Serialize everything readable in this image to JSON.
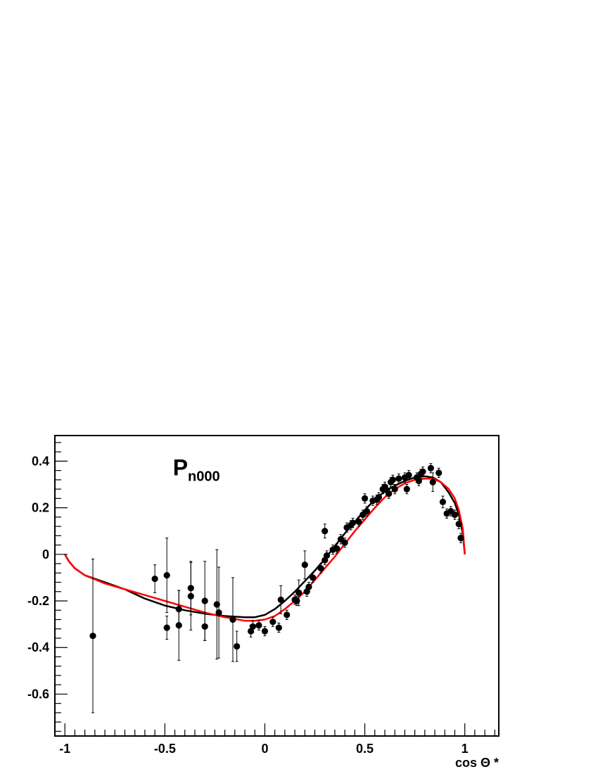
{
  "chart_data": {
    "type": "scatter",
    "title": "",
    "panel_label": {
      "main": "P",
      "subscript": "n000"
    },
    "xlabel": "cos Θ *",
    "ylabel": "",
    "xlim": [
      -1.05,
      1.17
    ],
    "ylim": [
      -0.78,
      0.51
    ],
    "x_ticks": [
      {
        "value": -1,
        "label": "-1"
      },
      {
        "value": -0.5,
        "label": "-0.5"
      },
      {
        "value": 0,
        "label": "0"
      },
      {
        "value": 0.5,
        "label": "0.5"
      },
      {
        "value": 1,
        "label": "1"
      }
    ],
    "y_ticks": [
      {
        "value": 0.4,
        "label": "0.4"
      },
      {
        "value": 0.2,
        "label": "0.2"
      },
      {
        "value": 0,
        "label": "0"
      },
      {
        "value": -0.2,
        "label": "-0.2"
      },
      {
        "value": -0.4,
        "label": "-0.4"
      },
      {
        "value": -0.6,
        "label": "-0.6"
      }
    ],
    "grid": false,
    "series": [
      {
        "kind": "points",
        "color": "#000000",
        "points": [
          {
            "x": -0.86,
            "y": -0.35,
            "err": 0.33
          },
          {
            "x": -0.55,
            "y": -0.105,
            "err": 0.06
          },
          {
            "x": -0.49,
            "y": -0.09,
            "err": 0.16
          },
          {
            "x": -0.49,
            "y": -0.315,
            "err": 0.05
          },
          {
            "x": -0.43,
            "y": -0.305,
            "err": 0.15
          },
          {
            "x": -0.43,
            "y": -0.235,
            "err": 0.08
          },
          {
            "x": -0.37,
            "y": -0.145,
            "err": 0.115
          },
          {
            "x": -0.37,
            "y": -0.18,
            "err": 0.145
          },
          {
            "x": -0.3,
            "y": -0.2,
            "err": 0.17
          },
          {
            "x": -0.3,
            "y": -0.31,
            "err": 0.06
          },
          {
            "x": -0.24,
            "y": -0.215,
            "err": 0.235
          },
          {
            "x": -0.23,
            "y": -0.25,
            "err": 0.195
          },
          {
            "x": -0.16,
            "y": -0.28,
            "err": 0.18
          },
          {
            "x": -0.14,
            "y": -0.395,
            "err": 0.065
          },
          {
            "x": -0.07,
            "y": -0.33,
            "err": 0.025
          },
          {
            "x": -0.06,
            "y": -0.31,
            "err": 0.025
          },
          {
            "x": -0.03,
            "y": -0.305,
            "err": 0.02
          },
          {
            "x": 0.0,
            "y": -0.33,
            "err": 0.02
          },
          {
            "x": 0.04,
            "y": -0.29,
            "err": 0.02
          },
          {
            "x": 0.07,
            "y": -0.315,
            "err": 0.02
          },
          {
            "x": 0.08,
            "y": -0.195,
            "err": 0.06
          },
          {
            "x": 0.11,
            "y": -0.26,
            "err": 0.02
          },
          {
            "x": 0.15,
            "y": -0.195,
            "err": 0.02
          },
          {
            "x": 0.16,
            "y": -0.2,
            "err": 0.02
          },
          {
            "x": 0.17,
            "y": -0.165,
            "err": 0.055
          },
          {
            "x": 0.2,
            "y": -0.045,
            "err": 0.06
          },
          {
            "x": 0.21,
            "y": -0.16,
            "err": 0.02
          },
          {
            "x": 0.22,
            "y": -0.14,
            "err": 0.02
          },
          {
            "x": 0.24,
            "y": -0.1,
            "err": 0.02
          },
          {
            "x": 0.28,
            "y": -0.06,
            "err": 0.02
          },
          {
            "x": 0.3,
            "y": 0.1,
            "err": 0.03
          },
          {
            "x": 0.3,
            "y": -0.025,
            "err": 0.02
          },
          {
            "x": 0.31,
            "y": -0.005,
            "err": 0.02
          },
          {
            "x": 0.34,
            "y": 0.02,
            "err": 0.02
          },
          {
            "x": 0.36,
            "y": 0.025,
            "err": 0.02
          },
          {
            "x": 0.38,
            "y": 0.065,
            "err": 0.02
          },
          {
            "x": 0.4,
            "y": 0.05,
            "err": 0.02
          },
          {
            "x": 0.41,
            "y": 0.115,
            "err": 0.02
          },
          {
            "x": 0.43,
            "y": 0.125,
            "err": 0.02
          },
          {
            "x": 0.44,
            "y": 0.135,
            "err": 0.02
          },
          {
            "x": 0.47,
            "y": 0.14,
            "err": 0.02
          },
          {
            "x": 0.49,
            "y": 0.17,
            "err": 0.02
          },
          {
            "x": 0.5,
            "y": 0.24,
            "err": 0.02
          },
          {
            "x": 0.51,
            "y": 0.185,
            "err": 0.02
          },
          {
            "x": 0.54,
            "y": 0.23,
            "err": 0.02
          },
          {
            "x": 0.56,
            "y": 0.235,
            "err": 0.02
          },
          {
            "x": 0.57,
            "y": 0.245,
            "err": 0.02
          },
          {
            "x": 0.59,
            "y": 0.28,
            "err": 0.02
          },
          {
            "x": 0.6,
            "y": 0.29,
            "err": 0.02
          },
          {
            "x": 0.61,
            "y": 0.275,
            "err": 0.02
          },
          {
            "x": 0.62,
            "y": 0.26,
            "err": 0.02
          },
          {
            "x": 0.63,
            "y": 0.31,
            "err": 0.02
          },
          {
            "x": 0.64,
            "y": 0.32,
            "err": 0.02
          },
          {
            "x": 0.65,
            "y": 0.28,
            "err": 0.02
          },
          {
            "x": 0.67,
            "y": 0.325,
            "err": 0.02
          },
          {
            "x": 0.7,
            "y": 0.33,
            "err": 0.02
          },
          {
            "x": 0.71,
            "y": 0.28,
            "err": 0.02
          },
          {
            "x": 0.72,
            "y": 0.34,
            "err": 0.02
          },
          {
            "x": 0.76,
            "y": 0.33,
            "err": 0.02
          },
          {
            "x": 0.77,
            "y": 0.315,
            "err": 0.02
          },
          {
            "x": 0.78,
            "y": 0.345,
            "err": 0.02
          },
          {
            "x": 0.79,
            "y": 0.355,
            "err": 0.02
          },
          {
            "x": 0.83,
            "y": 0.37,
            "err": 0.02
          },
          {
            "x": 0.84,
            "y": 0.31,
            "err": 0.04
          },
          {
            "x": 0.87,
            "y": 0.35,
            "err": 0.02
          },
          {
            "x": 0.89,
            "y": 0.225,
            "err": 0.025
          },
          {
            "x": 0.91,
            "y": 0.175,
            "err": 0.02
          },
          {
            "x": 0.93,
            "y": 0.185,
            "err": 0.02
          },
          {
            "x": 0.95,
            "y": 0.17,
            "err": 0.02
          },
          {
            "x": 0.97,
            "y": 0.13,
            "err": 0.02
          },
          {
            "x": 0.98,
            "y": 0.07,
            "err": 0.02
          }
        ]
      },
      {
        "kind": "line",
        "color": "#000000",
        "x": [
          -1.0,
          -0.98,
          -0.95,
          -0.9,
          -0.8,
          -0.7,
          -0.6,
          -0.5,
          -0.4,
          -0.3,
          -0.2,
          -0.1,
          -0.05,
          0.0,
          0.05,
          0.1,
          0.15,
          0.2,
          0.25,
          0.3,
          0.35,
          0.4,
          0.45,
          0.5,
          0.55,
          0.6,
          0.65,
          0.7,
          0.75,
          0.8,
          0.84,
          0.88,
          0.92,
          0.95,
          0.97,
          0.99,
          1.0
        ],
        "y": [
          0.0,
          -0.03,
          -0.06,
          -0.09,
          -0.12,
          -0.15,
          -0.19,
          -0.22,
          -0.24,
          -0.255,
          -0.265,
          -0.27,
          -0.27,
          -0.26,
          -0.235,
          -0.2,
          -0.16,
          -0.115,
          -0.07,
          -0.02,
          0.035,
          0.09,
          0.14,
          0.19,
          0.235,
          0.27,
          0.295,
          0.315,
          0.33,
          0.335,
          0.33,
          0.31,
          0.265,
          0.22,
          0.17,
          0.09,
          0.0
        ]
      },
      {
        "kind": "line",
        "color": "#ff0000",
        "x": [
          -1.0,
          -0.98,
          -0.95,
          -0.9,
          -0.8,
          -0.7,
          -0.6,
          -0.5,
          -0.4,
          -0.3,
          -0.2,
          -0.1,
          -0.05,
          0.0,
          0.05,
          0.1,
          0.15,
          0.2,
          0.25,
          0.3,
          0.35,
          0.4,
          0.45,
          0.5,
          0.55,
          0.6,
          0.65,
          0.7,
          0.75,
          0.8,
          0.84,
          0.88,
          0.92,
          0.95,
          0.97,
          0.99,
          1.0
        ],
        "y": [
          0.0,
          -0.03,
          -0.06,
          -0.09,
          -0.125,
          -0.15,
          -0.175,
          -0.2,
          -0.225,
          -0.25,
          -0.27,
          -0.285,
          -0.285,
          -0.28,
          -0.265,
          -0.235,
          -0.2,
          -0.16,
          -0.11,
          -0.06,
          -0.01,
          0.045,
          0.1,
          0.15,
          0.2,
          0.245,
          0.28,
          0.305,
          0.32,
          0.325,
          0.325,
          0.31,
          0.28,
          0.24,
          0.19,
          0.11,
          0.0
        ]
      }
    ]
  }
}
